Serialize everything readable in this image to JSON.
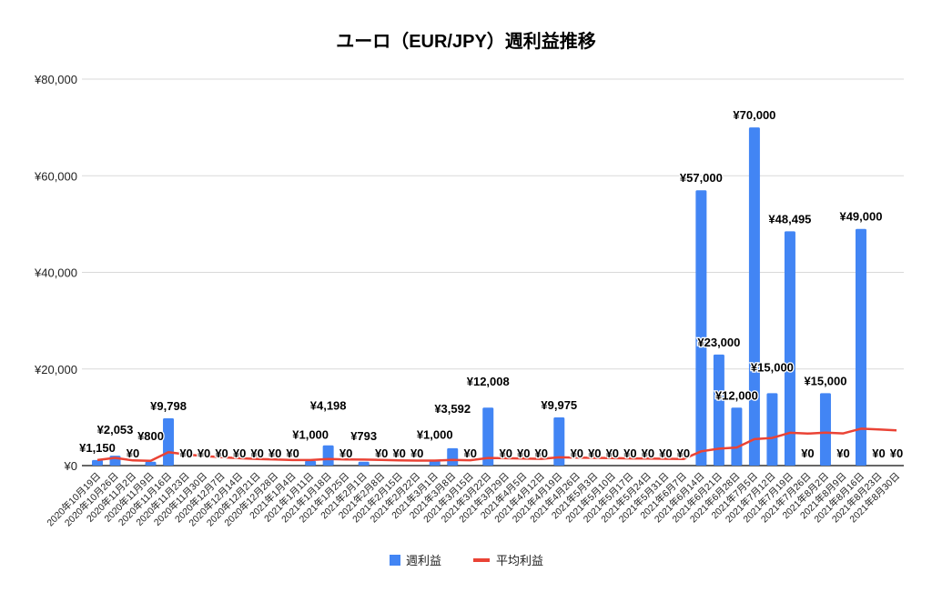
{
  "chart_data": {
    "type": "bar",
    "title": "ユーロ（EUR/JPY）週利益推移",
    "xlabel": "",
    "ylabel": "",
    "ylim": [
      0,
      80000
    ],
    "yticks": [
      0,
      20000,
      40000,
      60000,
      80000
    ],
    "ytick_labels": [
      "¥0",
      "¥20,000",
      "¥40,000",
      "¥60,000",
      "¥80,000"
    ],
    "grid": true,
    "legend_position": "bottom",
    "categories": [
      "2020年10月19日",
      "2020年10月26日",
      "2020年11月2日",
      "2020年11月9日",
      "2020年11月16日",
      "2020年11月23日",
      "2020年11月30日",
      "2020年12月7日",
      "2020年12月14日",
      "2020年12月21日",
      "2020年12月28日",
      "2021年1月4日",
      "2021年1月11日",
      "2021年1月18日",
      "2021年1月25日",
      "2021年2月1日",
      "2021年2月8日",
      "2021年2月15日",
      "2021年2月22日",
      "2021年3月1日",
      "2021年3月8日",
      "2021年3月15日",
      "2021年3月22日",
      "2021年3月29日",
      "2021年4月5日",
      "2021年4月12日",
      "2021年4月19日",
      "2021年4月26日",
      "2021年5月3日",
      "2021年5月10日",
      "2021年5月17日",
      "2021年5月24日",
      "2021年5月31日",
      "2021年6月7日",
      "2021年6月14日",
      "2021年6月21日",
      "2021年6月28日",
      "2021年7月5日",
      "2021年7月12日",
      "2021年7月19日",
      "2021年7月26日",
      "2021年8月2日",
      "2021年8月9日",
      "2021年8月16日",
      "2021年8月23日",
      "2021年8月30日"
    ],
    "series": [
      {
        "name": "週利益",
        "type": "bar",
        "color": "#4285f4",
        "values": [
          1150,
          2053,
          0,
          800,
          9798,
          0,
          0,
          0,
          0,
          0,
          0,
          0,
          1000,
          4198,
          0,
          793,
          0,
          0,
          0,
          1000,
          3592,
          0,
          12008,
          0,
          0,
          0,
          9975,
          0,
          0,
          0,
          0,
          0,
          0,
          0,
          57000,
          23000,
          12000,
          70000,
          15000,
          48495,
          0,
          15000,
          0,
          49000,
          0,
          0
        ],
        "data_labels": [
          "¥1,150",
          "¥2,053",
          "¥0",
          "¥800",
          "¥9,798",
          "¥0",
          "¥0",
          "¥0",
          "¥0",
          "¥0",
          "¥0",
          "¥0",
          "¥1,000",
          "¥4,198",
          "¥0",
          "¥793",
          "¥0",
          "¥0",
          "¥0",
          "¥1,000",
          "¥3,592",
          "¥0",
          "¥12,008",
          "¥0",
          "¥0",
          "¥0",
          "¥9,975",
          "¥0",
          "¥0",
          "¥0",
          "¥0",
          "¥0",
          "¥0",
          "¥0",
          "¥57,000",
          "¥23,000",
          "¥12,000",
          "¥70,000",
          "¥15,000",
          "¥48,495",
          "¥0",
          "¥15,000",
          "¥0",
          "¥49,000",
          "¥0",
          "¥0"
        ]
      },
      {
        "name": "平均利益",
        "type": "line",
        "color": "#ea4335",
        "values": [
          1150,
          1602,
          1068,
          1001,
          2760,
          2300,
          1972,
          1725,
          1533,
          1380,
          1255,
          1150,
          1139,
          1357,
          1267,
          1237,
          1164,
          1100,
          1042,
          1040,
          1161,
          1108,
          1582,
          1516,
          1456,
          1400,
          1717,
          1656,
          1599,
          1546,
          1496,
          1449,
          1405,
          1364,
          2953,
          3510,
          3740,
          5483,
          5727,
          6797,
          6631,
          6830,
          6671,
          7633,
          7464,
          7301
        ]
      }
    ]
  }
}
